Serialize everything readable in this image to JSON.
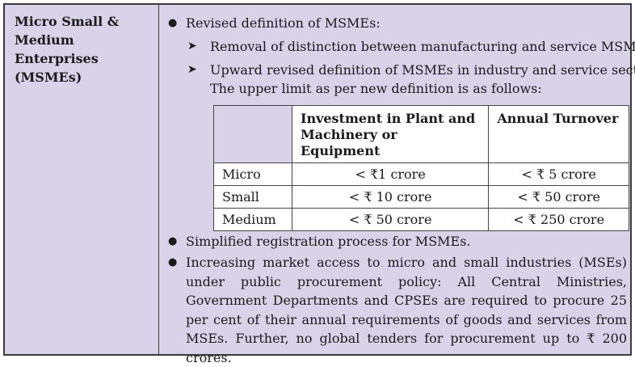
{
  "left_title": "Micro Small & Medium Enterprises (MSMEs)",
  "bullet1": "Revised definition of MSMEs:",
  "sub1": "Removal of distinction between manufacturing and service MSMEs.",
  "sub2_line1": "Upward revised definition of MSMEs in industry and service sector.",
  "sub2_line2": "The upper limit as per new definition is as follows:",
  "table": {
    "headers": [
      "",
      "Investment in Plant and Machinery or Equipment",
      "Annual Turnover"
    ],
    "rows": [
      {
        "category": "Micro",
        "investment": "< ₹1 crore",
        "turnover": "< ₹ 5 crore"
      },
      {
        "category": "Small",
        "investment": "< ₹ 10 crore",
        "turnover": "< ₹ 50 crore"
      },
      {
        "category": "Medium",
        "investment": "< ₹ 50 crore",
        "turnover": "< ₹ 250 crore"
      }
    ]
  },
  "bullet2": "Simplified registration process for MSMEs.",
  "bullet3": "Increasing market access to micro and small industries (MSEs) under public procurement policy: All Central Ministries, Government Departments and CPSEs are required to procure 25 per cent of their annual requirements of goods and services from MSEs. Further, no global tenders for procurement up to ₹ 200 crores."
}
